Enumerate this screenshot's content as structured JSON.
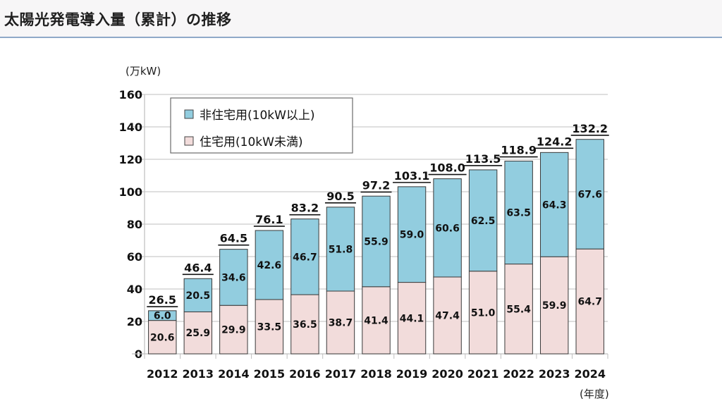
{
  "header": {
    "title": "太陽光発電導入量（累計）の推移"
  },
  "colors": {
    "non_residential": "#92cddf",
    "residential": "#f2dcdb",
    "bar_stroke": "#3a3a3a",
    "grid": "#bfbfbf"
  },
  "chart_data": {
    "type": "bar",
    "stacked": true,
    "title": "太陽光発電導入量（累計）の推移",
    "ylabel": "(万kW)",
    "xlabel": "(年度)",
    "ylim": [
      0,
      160
    ],
    "yticks": [
      0,
      20,
      40,
      60,
      80,
      100,
      120,
      140,
      160
    ],
    "grid": true,
    "legend_position": "top-left",
    "categories": [
      "2012",
      "2013",
      "2014",
      "2015",
      "2016",
      "2017",
      "2018",
      "2019",
      "2020",
      "2021",
      "2022",
      "2023",
      "2024"
    ],
    "series": [
      {
        "name": "住宅用(10kW未満)",
        "key": "residential",
        "values": [
          20.6,
          25.9,
          29.9,
          33.5,
          36.5,
          38.7,
          41.4,
          44.1,
          47.4,
          51.0,
          55.4,
          59.9,
          64.7
        ],
        "labels": [
          "20.6",
          "25.9",
          "29.9",
          "33.5",
          "36.5",
          "38.7",
          "41.4",
          "44.1",
          "47.4",
          "51.0",
          "55.4",
          "59.9",
          "64.7"
        ]
      },
      {
        "name": "非住宅用(10kW以上)",
        "key": "non_residential",
        "values": [
          6.0,
          20.5,
          34.6,
          42.6,
          46.7,
          51.8,
          55.9,
          59.0,
          60.6,
          62.5,
          63.5,
          64.3,
          67.6
        ],
        "labels": [
          "6.0",
          "20.5",
          "34.6",
          "42.6",
          "46.7",
          "51.8",
          "55.9",
          "59.0",
          "60.6",
          "62.5",
          "63.5",
          "64.3",
          "67.6"
        ]
      }
    ],
    "totals": [
      26.5,
      46.4,
      64.5,
      76.1,
      83.2,
      90.5,
      97.2,
      103.1,
      108.0,
      113.5,
      118.9,
      124.2,
      132.2
    ],
    "total_labels": [
      "26.5",
      "46.4",
      "64.5",
      "76.1",
      "83.2",
      "90.5",
      "97.2",
      "103.1",
      "108.0",
      "113.5",
      "118.9",
      "124.2",
      "132.2"
    ],
    "legend": [
      {
        "name": "非住宅用(10kW以上)",
        "key": "non_residential"
      },
      {
        "name": "住宅用(10kW未満)",
        "key": "residential"
      }
    ]
  }
}
